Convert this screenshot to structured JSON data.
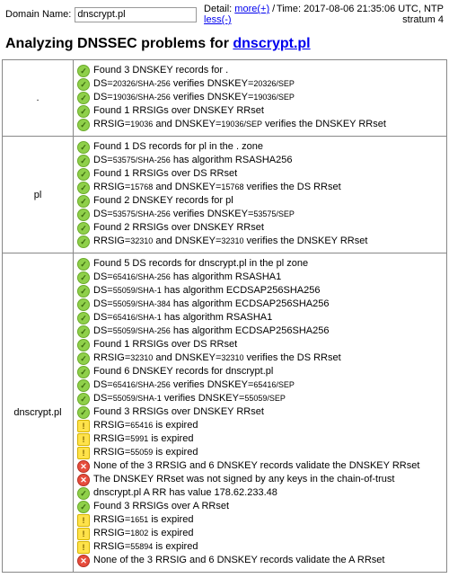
{
  "header": {
    "domain_label": "Domain Name:",
    "domain_value": "dnscrypt.pl",
    "detail_prefix": "Detail:",
    "detail_more": "more(+)",
    "detail_sep": "/",
    "detail_less": "less(-)",
    "time_line1": "Time: 2017-08-06 21:35:06 UTC, NTP",
    "time_line2": "stratum 4"
  },
  "title_prefix": "Analyzing DNSSEC problems for",
  "title_domain": "dnscrypt.pl",
  "sections": [
    {
      "zone": ".",
      "items": [
        {
          "s": "ok",
          "parts": [
            "Found 3 DNSKEY records for ."
          ]
        },
        {
          "s": "ok",
          "parts": [
            "DS=",
            "20326/SHA-256",
            " verifies DNSKEY=",
            "20326/SEP"
          ]
        },
        {
          "s": "ok",
          "parts": [
            "DS=",
            "19036/SHA-256",
            " verifies DNSKEY=",
            "19036/SEP"
          ]
        },
        {
          "s": "ok",
          "parts": [
            "Found 1 RRSIGs over DNSKEY RRset"
          ]
        },
        {
          "s": "ok",
          "parts": [
            "RRSIG=",
            "19036",
            " and DNSKEY=",
            "19036/SEP",
            " verifies the DNSKEY RRset"
          ]
        }
      ]
    },
    {
      "zone": "pl",
      "items": [
        {
          "s": "ok",
          "parts": [
            "Found 1 DS records for pl in the . zone"
          ]
        },
        {
          "s": "ok",
          "parts": [
            "DS=",
            "53575/SHA-256",
            " has algorithm RSASHA256"
          ]
        },
        {
          "s": "ok",
          "parts": [
            "Found 1 RRSIGs over DS RRset"
          ]
        },
        {
          "s": "ok",
          "parts": [
            "RRSIG=",
            "15768",
            " and DNSKEY=",
            "15768",
            " verifies the DS RRset"
          ]
        },
        {
          "s": "ok",
          "parts": [
            "Found 2 DNSKEY records for pl"
          ]
        },
        {
          "s": "ok",
          "parts": [
            "DS=",
            "53575/SHA-256",
            " verifies DNSKEY=",
            "53575/SEP"
          ]
        },
        {
          "s": "ok",
          "parts": [
            "Found 2 RRSIGs over DNSKEY RRset"
          ]
        },
        {
          "s": "ok",
          "parts": [
            "RRSIG=",
            "32310",
            " and DNSKEY=",
            "32310",
            " verifies the DNSKEY RRset"
          ]
        }
      ]
    },
    {
      "zone": "dnscrypt.pl",
      "items": [
        {
          "s": "ok",
          "parts": [
            "Found 5 DS records for dnscrypt.pl in the pl zone"
          ]
        },
        {
          "s": "ok",
          "parts": [
            "DS=",
            "65416/SHA-256",
            " has algorithm RSASHA1"
          ]
        },
        {
          "s": "ok",
          "parts": [
            "DS=",
            "55059/SHA-1",
            " has algorithm ECDSAP256SHA256"
          ]
        },
        {
          "s": "ok",
          "parts": [
            "DS=",
            "55059/SHA-384",
            " has algorithm ECDSAP256SHA256"
          ]
        },
        {
          "s": "ok",
          "parts": [
            "DS=",
            "65416/SHA-1",
            " has algorithm RSASHA1"
          ]
        },
        {
          "s": "ok",
          "parts": [
            "DS=",
            "55059/SHA-256",
            " has algorithm ECDSAP256SHA256"
          ]
        },
        {
          "s": "ok",
          "parts": [
            "Found 1 RRSIGs over DS RRset"
          ]
        },
        {
          "s": "ok",
          "parts": [
            "RRSIG=",
            "32310",
            " and DNSKEY=",
            "32310",
            " verifies the DS RRset"
          ]
        },
        {
          "s": "ok",
          "parts": [
            "Found 6 DNSKEY records for dnscrypt.pl"
          ]
        },
        {
          "s": "ok",
          "parts": [
            "DS=",
            "65416/SHA-256",
            " verifies DNSKEY=",
            "65416/SEP"
          ]
        },
        {
          "s": "ok",
          "parts": [
            "DS=",
            "55059/SHA-1",
            " verifies DNSKEY=",
            "55059/SEP"
          ]
        },
        {
          "s": "ok",
          "parts": [
            "Found 3 RRSIGs over DNSKEY RRset"
          ]
        },
        {
          "s": "warn",
          "parts": [
            "RRSIG=",
            "65416",
            " is expired"
          ]
        },
        {
          "s": "warn",
          "parts": [
            "RRSIG=",
            "5991",
            " is expired"
          ]
        },
        {
          "s": "warn",
          "parts": [
            "RRSIG=",
            "55059",
            " is expired"
          ]
        },
        {
          "s": "err",
          "parts": [
            "None of the 3 RRSIG and 6 DNSKEY records validate the DNSKEY RRset"
          ]
        },
        {
          "s": "err",
          "parts": [
            "The DNSKEY RRset was not signed by any keys in the chain-of-trust"
          ]
        },
        {
          "s": "ok",
          "parts": [
            "dnscrypt.pl A RR has value 178.62.233.48"
          ]
        },
        {
          "s": "ok",
          "parts": [
            "Found 3 RRSIGs over A RRset"
          ]
        },
        {
          "s": "warn",
          "parts": [
            "RRSIG=",
            "1651",
            " is expired"
          ]
        },
        {
          "s": "warn",
          "parts": [
            "RRSIG=",
            "1802",
            " is expired"
          ]
        },
        {
          "s": "warn",
          "parts": [
            "RRSIG=",
            "55894",
            " is expired"
          ]
        },
        {
          "s": "err",
          "parts": [
            "None of the 3 RRSIG and 6 DNSKEY records validate the A RRset"
          ]
        }
      ]
    }
  ]
}
